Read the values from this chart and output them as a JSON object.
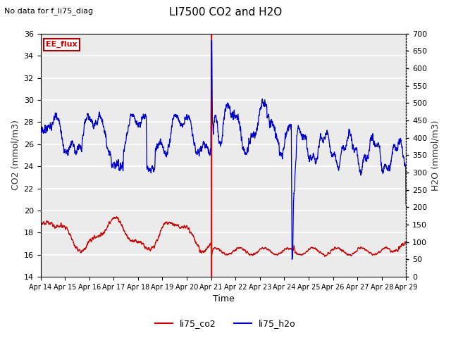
{
  "title": "LI7500 CO2 and H2O",
  "subtitle": "No data for f_li75_diag",
  "xlabel": "Time",
  "ylabel_left": "CO2 (mmol/m3)",
  "ylabel_right": "H2O (mmol/m3)",
  "ylim_left": [
    14,
    36
  ],
  "ylim_right": [
    0,
    700
  ],
  "yticks_left": [
    14,
    16,
    18,
    20,
    22,
    24,
    26,
    28,
    30,
    32,
    34,
    36
  ],
  "yticks_right": [
    0,
    50,
    100,
    150,
    200,
    250,
    300,
    350,
    400,
    450,
    500,
    550,
    600,
    650,
    700
  ],
  "vline_x": 7.0,
  "vline_color": "#ff0000",
  "legend_label_co2": "li75_co2",
  "legend_label_h2o": "li75_h2o",
  "legend_color_co2": "#cc0000",
  "legend_color_h2o": "#0000cc",
  "ee_flux_box_color": "#aa0000",
  "ee_flux_text_color": "#cc0000",
  "background_color": "#ebebeb",
  "plot_bg_color": "#ffffff",
  "grid_color": "#ffffff",
  "xtick_labels": [
    "Apr 14",
    "Apr 15",
    "Apr 16",
    "Apr 17",
    "Apr 18",
    "Apr 19",
    "Apr 20",
    "Apr 21",
    "Apr 22",
    "Apr 23",
    "Apr 24",
    "Apr 25",
    "Apr 26",
    "Apr 27",
    "Apr 28",
    "Apr 29"
  ],
  "n_days": 15
}
